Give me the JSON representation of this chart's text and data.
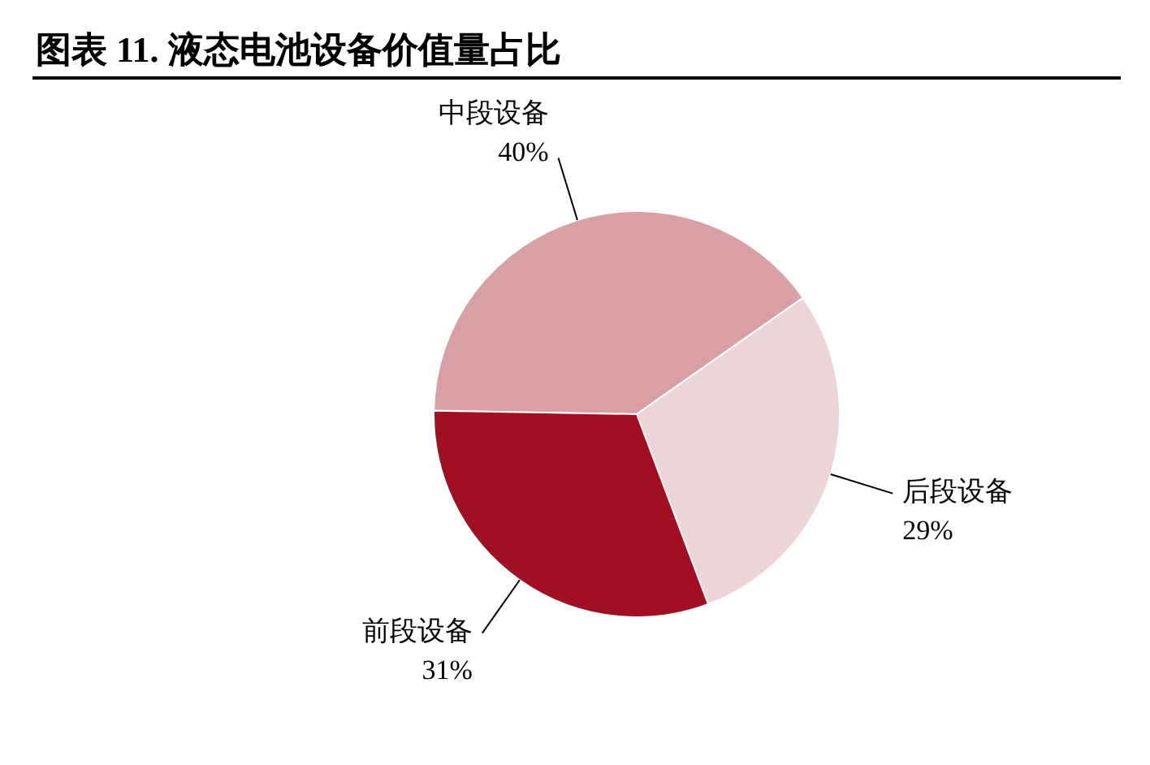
{
  "chart_data": {
    "type": "pie",
    "title": "图表 11. 液态电池设备价值量占比",
    "categories": [
      "中段设备",
      "后段设备",
      "前段设备"
    ],
    "values": [
      40,
      29,
      31
    ],
    "colors": [
      "#d9a0a3",
      "#ecd5d6",
      "#a30f22"
    ],
    "value_labels": [
      "40%",
      "29%",
      "31%"
    ]
  }
}
